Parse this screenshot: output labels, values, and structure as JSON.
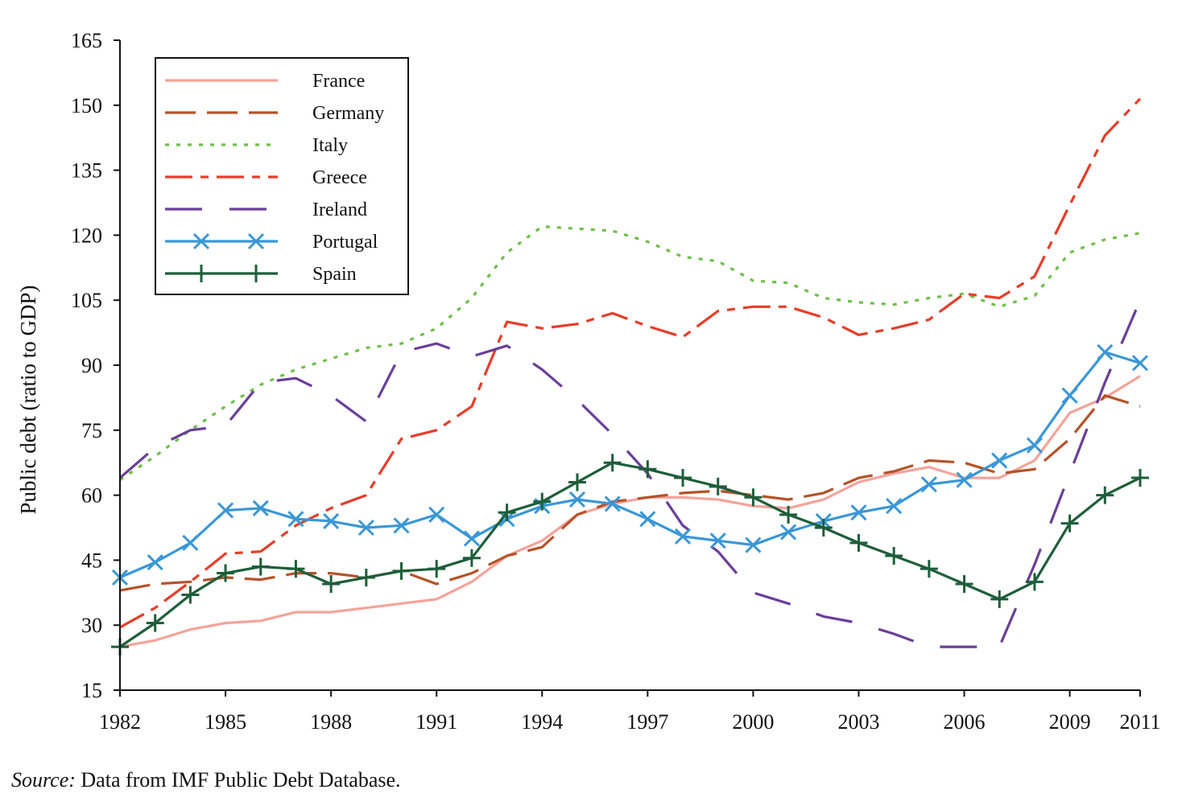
{
  "source": {
    "label": "Source:",
    "text": " Data from IMF Public Debt Database."
  },
  "chart_data": {
    "type": "line",
    "title": "",
    "xlabel": "",
    "ylabel": "Public debt (ratio to GDP)",
    "xlim": [
      1982,
      2011
    ],
    "ylim": [
      15,
      165
    ],
    "yticks": [
      15,
      30,
      45,
      60,
      75,
      90,
      105,
      120,
      135,
      150,
      165
    ],
    "xticks": [
      1982,
      1985,
      1988,
      1991,
      1994,
      1997,
      2000,
      2003,
      2006,
      2009,
      2011
    ],
    "grid": false,
    "legend_position": "top-left",
    "x": [
      1982,
      1983,
      1984,
      1985,
      1986,
      1987,
      1988,
      1989,
      1990,
      1991,
      1992,
      1993,
      1994,
      1995,
      1996,
      1997,
      1998,
      1999,
      2000,
      2001,
      2002,
      2003,
      2004,
      2005,
      2006,
      2007,
      2008,
      2009,
      2010,
      2011
    ],
    "series": [
      {
        "name": "France",
        "color": "#f4a39a",
        "dash": "",
        "marker": "none",
        "values": [
          25,
          26.5,
          29,
          30.5,
          31,
          33,
          33,
          34,
          35,
          36,
          40,
          46,
          49.5,
          55.5,
          58,
          59.5,
          59.5,
          59,
          57.5,
          57,
          59,
          63,
          65,
          66.5,
          64,
          64,
          68,
          79,
          82.5,
          87.5
        ]
      },
      {
        "name": "Germany",
        "color": "#b5532a",
        "dash": "38,14",
        "marker": "none",
        "values": [
          38,
          39.5,
          40,
          41,
          40.5,
          42,
          42,
          41,
          42.5,
          39.5,
          42,
          46,
          48,
          55.5,
          58.5,
          59.5,
          60.5,
          61,
          60,
          59,
          60.5,
          64,
          65.5,
          68,
          67.5,
          65,
          66,
          73,
          83,
          80.5
        ]
      },
      {
        "name": "Italy",
        "color": "#6fbf4a",
        "dash": "5,9",
        "marker": "none",
        "values": [
          63.5,
          69,
          75,
          80.5,
          85.5,
          89,
          91.5,
          94,
          95,
          98.5,
          105.5,
          116,
          122,
          121.5,
          121,
          118.5,
          115,
          114,
          109.5,
          109,
          105.5,
          104.5,
          104,
          105.5,
          106.5,
          103.5,
          106,
          116,
          119,
          120.5
        ]
      },
      {
        "name": "Greece",
        "color": "#e53e2a",
        "dash": "34,10,10,10",
        "marker": "none",
        "values": [
          29.5,
          34,
          40,
          46.5,
          47,
          53,
          57,
          60,
          73,
          75,
          80.5,
          100,
          98.5,
          99.5,
          102,
          99,
          96.5,
          102.5,
          103.5,
          103.5,
          101,
          97,
          98.5,
          100.5,
          106.5,
          105.5,
          110.5,
          127,
          143,
          151.5
        ]
      },
      {
        "name": "Ireland",
        "color": "#6a3f98",
        "dash": "46,34",
        "marker": "none",
        "values": [
          64,
          71,
          75,
          76,
          86,
          87,
          83,
          77,
          93,
          95,
          92,
          94.5,
          89,
          82,
          74,
          65,
          53,
          47,
          37.5,
          35,
          32,
          30.5,
          28,
          25,
          25,
          25,
          44,
          65,
          86,
          105
        ]
      },
      {
        "name": "Portugal",
        "color": "#3a97d6",
        "dash": "",
        "marker": "x",
        "values": [
          41,
          44.5,
          49,
          56.5,
          57,
          54.5,
          54,
          52.5,
          53,
          55.5,
          50,
          54.5,
          57.5,
          59,
          58,
          54.5,
          50.5,
          49.5,
          48.5,
          51.5,
          54,
          56,
          57.5,
          62.5,
          63.5,
          68,
          71.5,
          83,
          93,
          90.5
        ]
      },
      {
        "name": "Spain",
        "color": "#1e5e3a",
        "dash": "",
        "marker": "plus",
        "values": [
          25,
          30.5,
          37,
          42,
          43.5,
          43,
          39.5,
          41,
          42.5,
          43,
          45.5,
          56,
          58.5,
          63,
          67.5,
          66,
          64,
          62,
          59.5,
          55.5,
          52.5,
          49,
          46,
          43,
          39.5,
          36,
          40,
          53.5,
          60,
          64
        ]
      }
    ]
  }
}
